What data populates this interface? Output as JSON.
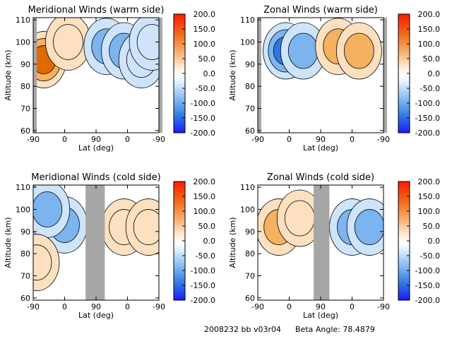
{
  "footer": {
    "run_label": "2008232 bb v03r04",
    "beta_label": "Beta Angle: 78.4879"
  },
  "colorbar_ticks": [
    "200.0",
    "150.0",
    "100.0",
    "50.0",
    "0.0",
    "-50.0",
    "-100.0",
    "-150.0",
    "-200.0"
  ],
  "colors": {
    "warm_dark": "#e06a00",
    "warm_mid": "#f5b060",
    "warm_light": "#fde0bf",
    "cool_light": "#cde4fb",
    "cool_mid": "#7cb4f0",
    "cool_dark": "#2f78e0",
    "data_gap": "#a6a6a6"
  },
  "chart_data": [
    {
      "type": "heatmap",
      "title": "Meridional Winds (warm side)",
      "xlabel": "Lat (deg)",
      "ylabel": "Altitude (km)",
      "x_tick_labels": [
        "-90",
        "0",
        "90",
        "0",
        "-90"
      ],
      "y_ticks": [
        60,
        70,
        80,
        90,
        100,
        110
      ],
      "ylim": [
        59,
        111
      ],
      "colorbar_range": [
        -200,
        200
      ],
      "gaps": [
        [
          -90,
          -80
        ],
        [
          270,
          280
        ]
      ],
      "features": [
        {
          "x": -60,
          "y": 92,
          "v": 110
        },
        {
          "x": 10,
          "y": 100,
          "v": 30
        },
        {
          "x": 120,
          "y": 98,
          "v": -70
        },
        {
          "x": 170,
          "y": 96,
          "v": -60
        },
        {
          "x": 220,
          "y": 92,
          "v": -40
        },
        {
          "x": 250,
          "y": 100,
          "v": -30
        }
      ]
    },
    {
      "type": "heatmap",
      "title": "Zonal Winds (warm side)",
      "xlabel": "Lat (deg)",
      "ylabel": "Altitude (km)",
      "x_tick_labels": [
        "-90",
        "0",
        "90",
        "0",
        "-90"
      ],
      "y_ticks": [
        60,
        70,
        80,
        90,
        100,
        110
      ],
      "ylim": [
        59,
        111
      ],
      "colorbar_range": [
        -200,
        200
      ],
      "gaps": [
        [
          -90,
          -80
        ],
        [
          270,
          280
        ]
      ],
      "features": [
        {
          "x": -10,
          "y": 96,
          "v": -140
        },
        {
          "x": 40,
          "y": 96,
          "v": -90
        },
        {
          "x": 140,
          "y": 98,
          "v": 80
        },
        {
          "x": 200,
          "y": 96,
          "v": 70
        }
      ]
    },
    {
      "type": "heatmap",
      "title": "Meridional Winds (cold side)",
      "xlabel": "Lat (deg)",
      "ylabel": "Altitude (km)",
      "x_tick_labels": [
        "-90",
        "0",
        "90",
        "0",
        "-90"
      ],
      "y_ticks": [
        60,
        70,
        80,
        90,
        100,
        110
      ],
      "ylim": [
        59,
        111
      ],
      "colorbar_range": [
        -200,
        200
      ],
      "gaps": [
        [
          60,
          115
        ]
      ],
      "features": [
        {
          "x": 0,
          "y": 93,
          "v": -90
        },
        {
          "x": -50,
          "y": 100,
          "v": -60
        },
        {
          "x": -80,
          "y": 76,
          "v": 20
        },
        {
          "x": 170,
          "y": 92,
          "v": 30
        },
        {
          "x": 240,
          "y": 92,
          "v": 25
        }
      ]
    },
    {
      "type": "heatmap",
      "title": "Zonal Winds (cold side)",
      "xlabel": "Lat (deg)",
      "ylabel": "Altitude (km)",
      "x_tick_labels": [
        "-90",
        "0",
        "90",
        "0",
        "-90"
      ],
      "y_ticks": [
        60,
        70,
        80,
        90,
        100,
        110
      ],
      "ylim": [
        59,
        111
      ],
      "colorbar_range": [
        -200,
        200
      ],
      "gaps": [
        [
          70,
          115
        ]
      ],
      "features": [
        {
          "x": -30,
          "y": 92,
          "v": 90
        },
        {
          "x": 30,
          "y": 96,
          "v": 40
        },
        {
          "x": 180,
          "y": 92,
          "v": -60
        },
        {
          "x": 230,
          "y": 92,
          "v": -50
        }
      ]
    }
  ]
}
